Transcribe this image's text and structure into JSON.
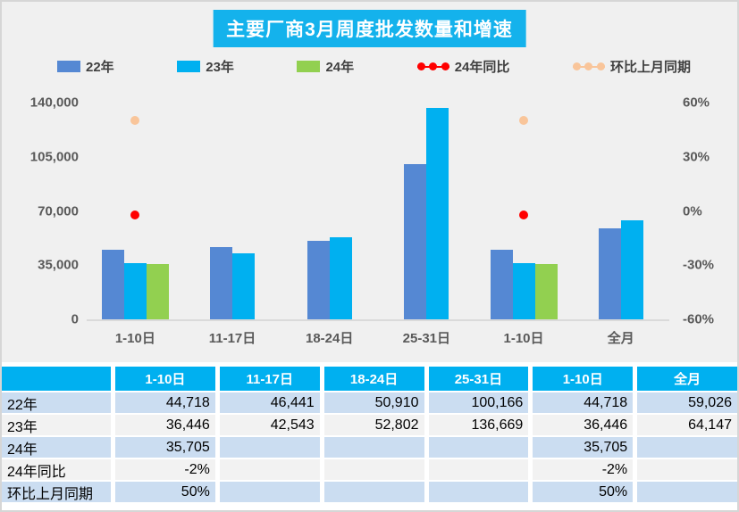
{
  "title": "主要厂商3月周度批发数量和增速",
  "colors": {
    "title_bg": "#14b2ec",
    "header_bg": "#00b0f0",
    "chart_bg": "#f0f0f0",
    "row_blue": "#cbddf1",
    "row_gray": "#f2f2f2",
    "axis_text": "#595959",
    "legend_text": "#3f3f3f"
  },
  "chart_data": {
    "type": "bar",
    "categories": [
      "1-10日",
      "11-17日",
      "18-24日",
      "25-31日",
      "1-10日",
      "全月"
    ],
    "bar_series": [
      {
        "name": "22年",
        "color": "#5588d3",
        "values": [
          44718,
          46441,
          50910,
          100166,
          44718,
          59026
        ]
      },
      {
        "name": "23年",
        "color": "#00b0f0",
        "values": [
          36446,
          42543,
          52802,
          136669,
          36446,
          64147
        ]
      },
      {
        "name": "24年",
        "color": "#92d050",
        "values": [
          35705,
          null,
          null,
          null,
          35705,
          null
        ]
      }
    ],
    "point_series": [
      {
        "name": "24年同比",
        "color": "#ff0000",
        "values_pct": [
          -2,
          null,
          null,
          null,
          -2,
          null
        ]
      },
      {
        "name": "环比上月同期",
        "color": "#f9c59a",
        "values_pct": [
          50,
          null,
          null,
          null,
          50,
          null
        ]
      }
    ],
    "left_axis": {
      "ticks": [
        "140,000",
        "105,000",
        "70,000",
        "35,000",
        "0"
      ],
      "min": 0,
      "max": 140000
    },
    "right_axis": {
      "ticks": [
        "60%",
        "30%",
        "0%",
        "-30%",
        "-60%"
      ],
      "min": -60,
      "max": 60
    },
    "grid": false,
    "legend_position": "top",
    "title": "主要厂商3月周度批发数量和增速"
  },
  "table": {
    "header": [
      "",
      "1-10日",
      "11-17日",
      "18-24日",
      "25-31日",
      "1-10日",
      "全月"
    ],
    "rows": [
      {
        "label": "22年",
        "cells": [
          "44,718",
          "46,441",
          "50,910",
          "100,166",
          "44,718",
          "59,026"
        ]
      },
      {
        "label": "23年",
        "cells": [
          "36,446",
          "42,543",
          "52,802",
          "136,669",
          "36,446",
          "64,147"
        ]
      },
      {
        "label": "24年",
        "cells": [
          "35,705",
          "",
          "",
          "",
          "35,705",
          ""
        ]
      },
      {
        "label": "24年同比",
        "cells": [
          "-2%",
          "",
          "",
          "",
          "-2%",
          ""
        ]
      },
      {
        "label": "环比上月同期",
        "cells": [
          "50%",
          "",
          "",
          "",
          "50%",
          ""
        ]
      }
    ]
  }
}
